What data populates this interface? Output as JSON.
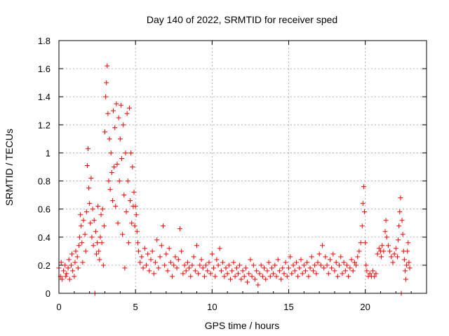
{
  "chart_data": {
    "type": "scatter",
    "title": "Day 140 of 2022, SRMTID for receiver sped",
    "xlabel": "GPS time / hours",
    "ylabel": "SRMTID / TECUs",
    "xlim": [
      0,
      24
    ],
    "ylim": [
      0,
      1.8
    ],
    "xticks": [
      0,
      5,
      10,
      15,
      20
    ],
    "xtick_labels": [
      "0",
      "5",
      "10",
      "15",
      "20"
    ],
    "yticks": [
      0,
      0.2,
      0.4,
      0.6,
      0.8,
      1,
      1.2,
      1.4,
      1.6,
      1.8
    ],
    "ytick_labels": [
      "0",
      "0.2",
      "0.4",
      "0.6",
      "0.8",
      "1",
      "1.2",
      "1.4",
      "1.6",
      "1.8"
    ],
    "grid": true,
    "marker": "plus",
    "colors": {
      "series": "#ff0000",
      "grid": "#a0a0a0",
      "axis": "#000000"
    },
    "series": [
      {
        "name": "SRMTID",
        "points": [
          [
            0.0,
            0.18
          ],
          [
            0.1,
            0.12
          ],
          [
            0.15,
            0.22
          ],
          [
            0.2,
            0.1
          ],
          [
            0.3,
            0.16
          ],
          [
            0.4,
            0.2
          ],
          [
            0.45,
            0.12
          ],
          [
            0.5,
            0.14
          ],
          [
            0.6,
            0.18
          ],
          [
            0.65,
            0.24
          ],
          [
            0.7,
            0.1
          ],
          [
            0.8,
            0.2
          ],
          [
            0.85,
            0.28
          ],
          [
            0.9,
            0.16
          ],
          [
            1.0,
            0.12
          ],
          [
            1.05,
            0.22
          ],
          [
            1.1,
            0.3
          ],
          [
            1.2,
            0.26
          ],
          [
            1.25,
            0.18
          ],
          [
            1.3,
            0.34
          ],
          [
            1.35,
            0.4
          ],
          [
            1.4,
            0.56
          ],
          [
            1.45,
            0.48
          ],
          [
            1.5,
            0.36
          ],
          [
            1.55,
            0.22
          ],
          [
            1.6,
            0.52
          ],
          [
            1.7,
            0.42
          ],
          [
            1.75,
            0.3
          ],
          [
            1.8,
            0.58
          ],
          [
            1.85,
            0.91
          ],
          [
            1.9,
            1.03
          ],
          [
            1.95,
            0.75
          ],
          [
            2.0,
            0.64
          ],
          [
            2.05,
            0.5
          ],
          [
            2.1,
            0.82
          ],
          [
            2.15,
            0.4
          ],
          [
            2.2,
            0.6
          ],
          [
            2.25,
            0.34
          ],
          [
            2.3,
            0.52
          ],
          [
            2.35,
            0.0
          ],
          [
            2.4,
            0.44
          ],
          [
            2.45,
            0.28
          ],
          [
            2.5,
            0.36
          ],
          [
            2.55,
            0.62
          ],
          [
            2.6,
            0.3
          ],
          [
            2.65,
            0.24
          ],
          [
            2.7,
            0.4
          ],
          [
            2.75,
            0.56
          ],
          [
            2.8,
            0.36
          ],
          [
            2.85,
            0.6
          ],
          [
            2.9,
            0.2
          ],
          [
            2.95,
            0.48
          ],
          [
            3.0,
            1.15
          ],
          [
            3.05,
            1.4
          ],
          [
            3.1,
            1.5
          ],
          [
            3.15,
            1.62
          ],
          [
            3.2,
            1.28
          ],
          [
            3.25,
            0.8
          ],
          [
            3.3,
            1.1
          ],
          [
            3.35,
            0.74
          ],
          [
            3.4,
            1.0
          ],
          [
            3.45,
            0.86
          ],
          [
            3.5,
            0.66
          ],
          [
            3.55,
            1.3
          ],
          [
            3.6,
            0.9
          ],
          [
            3.65,
            1.18
          ],
          [
            3.7,
            0.62
          ],
          [
            3.75,
            1.35
          ],
          [
            3.8,
            0.92
          ],
          [
            3.85,
            0.5
          ],
          [
            3.9,
            1.25
          ],
          [
            3.95,
            0.8
          ],
          [
            4.0,
            1.1
          ],
          [
            4.05,
            1.34
          ],
          [
            4.1,
            0.96
          ],
          [
            4.15,
            0.42
          ],
          [
            4.2,
            1.2
          ],
          [
            4.25,
            0.7
          ],
          [
            4.3,
            0.18
          ],
          [
            4.35,
            1.0
          ],
          [
            4.4,
            0.58
          ],
          [
            4.45,
            1.28
          ],
          [
            4.5,
            0.8
          ],
          [
            4.55,
            0.36
          ],
          [
            4.6,
            1.32
          ],
          [
            4.65,
            0.66
          ],
          [
            4.7,
            1.0
          ],
          [
            4.75,
            0.5
          ],
          [
            4.8,
            0.9
          ],
          [
            4.85,
            0.62
          ],
          [
            4.9,
            0.72
          ],
          [
            4.95,
            0.48
          ],
          [
            5.0,
            0.62
          ],
          [
            5.05,
            0.56
          ],
          [
            5.1,
            0.44
          ],
          [
            5.15,
            0.36
          ],
          [
            5.2,
            0.3
          ],
          [
            5.3,
            0.22
          ],
          [
            5.4,
            0.26
          ],
          [
            5.5,
            0.18
          ],
          [
            5.6,
            0.32
          ],
          [
            5.7,
            0.2
          ],
          [
            5.8,
            0.28
          ],
          [
            5.9,
            0.16
          ],
          [
            6.0,
            0.24
          ],
          [
            6.1,
            0.3
          ],
          [
            6.2,
            0.14
          ],
          [
            6.3,
            0.22
          ],
          [
            6.4,
            0.38
          ],
          [
            6.5,
            0.18
          ],
          [
            6.6,
            0.26
          ],
          [
            6.7,
            0.34
          ],
          [
            6.8,
            0.48
          ],
          [
            6.9,
            0.2
          ],
          [
            7.0,
            0.28
          ],
          [
            7.1,
            0.16
          ],
          [
            7.2,
            0.32
          ],
          [
            7.3,
            0.22
          ],
          [
            7.4,
            0.12
          ],
          [
            7.5,
            0.2
          ],
          [
            7.6,
            0.26
          ],
          [
            7.7,
            0.18
          ],
          [
            7.8,
            0.24
          ],
          [
            7.9,
            0.46
          ],
          [
            8.0,
            0.3
          ],
          [
            8.1,
            0.14
          ],
          [
            8.2,
            0.2
          ],
          [
            8.3,
            0.16
          ],
          [
            8.4,
            0.22
          ],
          [
            8.5,
            0.18
          ],
          [
            8.6,
            0.12
          ],
          [
            8.7,
            0.2
          ],
          [
            8.8,
            0.26
          ],
          [
            8.9,
            0.16
          ],
          [
            9.0,
            0.34
          ],
          [
            9.1,
            0.14
          ],
          [
            9.2,
            0.2
          ],
          [
            9.3,
            0.24
          ],
          [
            9.4,
            0.18
          ],
          [
            9.5,
            0.12
          ],
          [
            9.6,
            0.2
          ],
          [
            9.7,
            0.16
          ],
          [
            9.8,
            0.22
          ],
          [
            9.9,
            0.14
          ],
          [
            10.0,
            0.28
          ],
          [
            10.1,
            0.18
          ],
          [
            10.2,
            0.12
          ],
          [
            10.3,
            0.24
          ],
          [
            10.4,
            0.2
          ],
          [
            10.5,
            0.32
          ],
          [
            10.6,
            0.16
          ],
          [
            10.7,
            0.22
          ],
          [
            10.8,
            0.12
          ],
          [
            10.9,
            0.18
          ],
          [
            11.0,
            0.14
          ],
          [
            11.1,
            0.2
          ],
          [
            11.2,
            0.1
          ],
          [
            11.3,
            0.16
          ],
          [
            11.4,
            0.22
          ],
          [
            11.5,
            0.12
          ],
          [
            11.6,
            0.18
          ],
          [
            11.7,
            0.14
          ],
          [
            11.8,
            0.2
          ],
          [
            11.9,
            0.1
          ],
          [
            12.0,
            0.16
          ],
          [
            12.1,
            0.12
          ],
          [
            12.2,
            0.18
          ],
          [
            12.3,
            0.08
          ],
          [
            12.4,
            0.14
          ],
          [
            12.5,
            0.24
          ],
          [
            12.6,
            0.12
          ],
          [
            12.7,
            0.2
          ],
          [
            12.8,
            0.1
          ],
          [
            12.9,
            0.16
          ],
          [
            13.0,
            0.06
          ],
          [
            13.1,
            0.14
          ],
          [
            13.2,
            0.2
          ],
          [
            13.3,
            0.12
          ],
          [
            13.4,
            0.18
          ],
          [
            13.5,
            0.1
          ],
          [
            13.6,
            0.16
          ],
          [
            13.7,
            0.22
          ],
          [
            13.8,
            0.12
          ],
          [
            13.9,
            0.18
          ],
          [
            14.0,
            0.14
          ],
          [
            14.1,
            0.2
          ],
          [
            14.2,
            0.12
          ],
          [
            14.3,
            0.24
          ],
          [
            14.4,
            0.16
          ],
          [
            14.5,
            0.1
          ],
          [
            14.6,
            0.18
          ],
          [
            14.7,
            0.14
          ],
          [
            14.8,
            0.22
          ],
          [
            14.9,
            0.12
          ],
          [
            15.0,
            0.18
          ],
          [
            15.1,
            0.26
          ],
          [
            15.2,
            0.14
          ],
          [
            15.3,
            0.2
          ],
          [
            15.4,
            0.16
          ],
          [
            15.5,
            0.22
          ],
          [
            15.6,
            0.12
          ],
          [
            15.7,
            0.18
          ],
          [
            15.8,
            0.24
          ],
          [
            15.9,
            0.14
          ],
          [
            16.0,
            0.2
          ],
          [
            16.1,
            0.16
          ],
          [
            16.2,
            0.22
          ],
          [
            16.3,
            0.12
          ],
          [
            16.4,
            0.18
          ],
          [
            16.5,
            0.26
          ],
          [
            16.6,
            0.16
          ],
          [
            16.7,
            0.2
          ],
          [
            16.8,
            0.14
          ],
          [
            16.9,
            0.22
          ],
          [
            17.0,
            0.28
          ],
          [
            17.1,
            0.2
          ],
          [
            17.2,
            0.34
          ],
          [
            17.3,
            0.18
          ],
          [
            17.4,
            0.26
          ],
          [
            17.5,
            0.2
          ],
          [
            17.6,
            0.14
          ],
          [
            17.7,
            0.24
          ],
          [
            17.8,
            0.18
          ],
          [
            17.9,
            0.28
          ],
          [
            18.0,
            0.16
          ],
          [
            18.1,
            0.22
          ],
          [
            18.2,
            0.12
          ],
          [
            18.3,
            0.2
          ],
          [
            18.4,
            0.26
          ],
          [
            18.5,
            0.14
          ],
          [
            18.6,
            0.22
          ],
          [
            18.7,
            0.16
          ],
          [
            18.8,
            0.2
          ],
          [
            18.9,
            0.12
          ],
          [
            19.0,
            0.18
          ],
          [
            19.1,
            0.24
          ],
          [
            19.2,
            0.16
          ],
          [
            19.3,
            0.22
          ],
          [
            19.4,
            0.2
          ],
          [
            19.5,
            0.26
          ],
          [
            19.6,
            0.3
          ],
          [
            19.7,
            0.36
          ],
          [
            19.8,
            0.48
          ],
          [
            19.85,
            0.64
          ],
          [
            19.9,
            0.76
          ],
          [
            19.95,
            0.58
          ],
          [
            20.0,
            0.36
          ],
          [
            20.05,
            0.2
          ],
          [
            20.1,
            0.16
          ],
          [
            20.2,
            0.12
          ],
          [
            20.3,
            0.14
          ],
          [
            20.4,
            0.12
          ],
          [
            20.5,
            0.16
          ],
          [
            20.6,
            0.12
          ],
          [
            20.7,
            0.14
          ],
          [
            20.8,
            0.28
          ],
          [
            20.9,
            0.32
          ],
          [
            21.0,
            0.3
          ],
          [
            21.05,
            0.26
          ],
          [
            21.1,
            0.34
          ],
          [
            21.2,
            0.3
          ],
          [
            21.3,
            0.44
          ],
          [
            21.35,
            0.52
          ],
          [
            21.4,
            0.4
          ],
          [
            21.5,
            0.34
          ],
          [
            21.6,
            0.3
          ],
          [
            21.7,
            0.26
          ],
          [
            21.8,
            0.22
          ],
          [
            21.9,
            0.28
          ],
          [
            22.0,
            0.32
          ],
          [
            22.1,
            0.26
          ],
          [
            22.15,
            0.38
          ],
          [
            22.2,
            0.48
          ],
          [
            22.25,
            0.58
          ],
          [
            22.3,
            0.68
          ],
          [
            22.35,
            0.0
          ],
          [
            22.4,
            0.52
          ],
          [
            22.45,
            0.42
          ],
          [
            22.5,
            0.3
          ],
          [
            22.55,
            0.24
          ],
          [
            22.6,
            0.16
          ],
          [
            22.65,
            0.1
          ],
          [
            22.7,
            0.2
          ],
          [
            22.75,
            0.3
          ],
          [
            22.8,
            0.36
          ],
          [
            22.85,
            0.22
          ],
          [
            22.9,
            0.18
          ]
        ]
      }
    ]
  }
}
